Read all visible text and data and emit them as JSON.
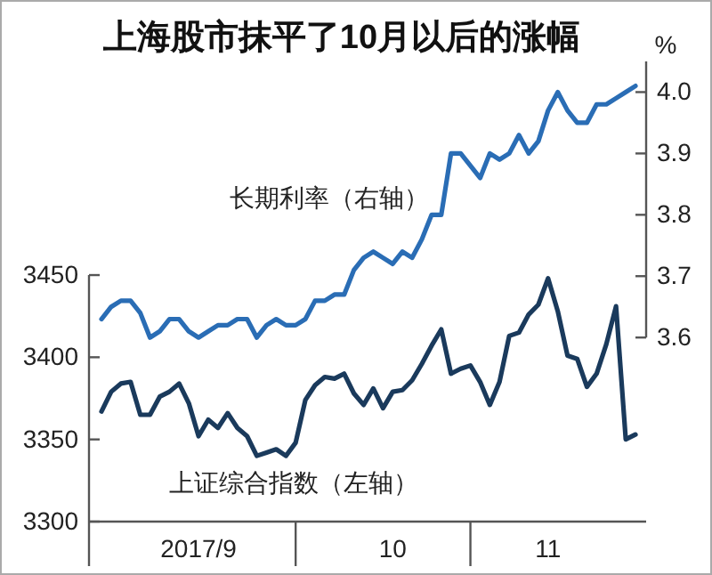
{
  "chart_data": {
    "type": "line",
    "title": "上海股市抹平了10月以后的涨幅",
    "y2label": "%",
    "categories": [
      null,
      null,
      null,
      null,
      null,
      null,
      null,
      null,
      null,
      null,
      "2017/9",
      null,
      null,
      null,
      null,
      null,
      null,
      null,
      null,
      null,
      null,
      null,
      null,
      null,
      null,
      null,
      null,
      null,
      null,
      null,
      "10",
      null,
      null,
      null,
      null,
      null,
      null,
      null,
      null,
      null,
      null,
      null,
      null,
      null,
      null,
      null,
      "11",
      null,
      null,
      null,
      null,
      null,
      null,
      null,
      null,
      null
    ],
    "ylim": [
      3300,
      3580
    ],
    "yticks": [
      3300,
      3350,
      3400,
      3450
    ],
    "y2lim": [
      3.3,
      4.05
    ],
    "y2ticks": [
      3.6,
      3.7,
      3.8,
      3.9,
      {
        "value": 4,
        "label": "4.0"
      }
    ],
    "grid": false,
    "series": [
      {
        "name": "长期利率（右轴）",
        "color": "#2a6db5",
        "axis": "y2",
        "values": [
          3.63,
          3.65,
          3.66,
          3.66,
          3.64,
          3.6,
          3.61,
          3.63,
          3.63,
          3.61,
          3.6,
          3.61,
          3.62,
          3.62,
          3.63,
          3.63,
          3.6,
          3.62,
          3.63,
          3.62,
          3.62,
          3.63,
          3.66,
          3.66,
          3.67,
          3.67,
          3.71,
          3.73,
          3.74,
          3.73,
          3.72,
          3.74,
          3.73,
          3.76,
          3.8,
          3.8,
          3.9,
          3.9,
          3.88,
          3.86,
          3.9,
          3.89,
          3.9,
          3.93,
          3.9,
          3.92,
          3.97,
          4.0,
          3.97,
          3.95,
          3.95,
          3.98,
          3.98,
          3.99,
          4.0,
          4.01
        ]
      },
      {
        "name": "上证综合指数（左轴）",
        "color": "#1a3a5c",
        "axis": "y",
        "values": [
          3367,
          3379,
          3384,
          3385,
          3365,
          3365,
          3376,
          3379,
          3384,
          3372,
          3352,
          3362,
          3357,
          3366,
          3357,
          3352,
          3340,
          3342,
          3344,
          3340,
          3348,
          3374,
          3383,
          3388,
          3387,
          3390,
          3378,
          3371,
          3381,
          3369,
          3379,
          3380,
          3386,
          3396,
          3407,
          3417,
          3390,
          3393,
          3395,
          3385,
          3371,
          3385,
          3413,
          3415,
          3426,
          3432,
          3448,
          3428,
          3401,
          3399,
          3382,
          3390,
          3408,
          3431,
          3350,
          3353
        ]
      }
    ]
  }
}
